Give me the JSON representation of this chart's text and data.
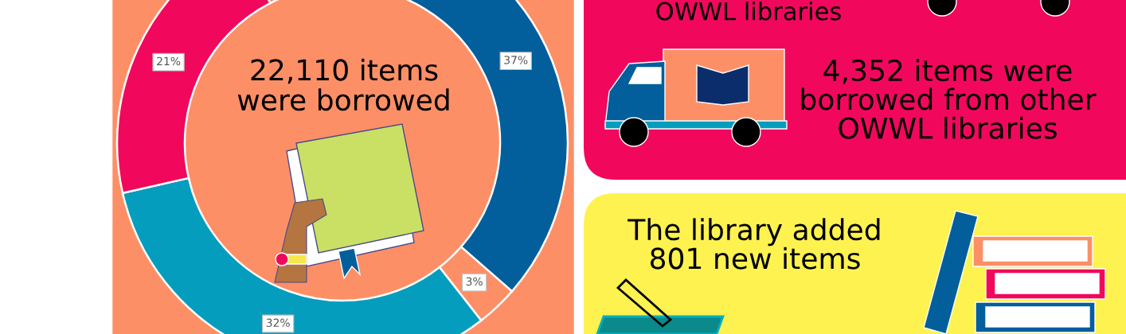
{
  "chart_data": [
    {
      "type": "donut",
      "title": "22,110 items\nwere borrowed",
      "categories": [
        null,
        null,
        null,
        null,
        null
      ],
      "values": [
        37,
        3,
        32,
        21,
        7
      ],
      "colors": [
        "#035e9c",
        "#fd8f67",
        "#059dbd",
        "#f1085c",
        "#fd8f67"
      ],
      "value_labels": [
        "37%",
        "3%",
        "32%",
        "21%",
        null
      ]
    },
    {
      "type": "other",
      "annotations": [
        "OWWL libraries",
        "4,352 items were\nborrowed from other\nOWWL libraries"
      ]
    },
    {
      "type": "other",
      "annotations": [
        "The library added\n801 new items"
      ]
    }
  ]
}
